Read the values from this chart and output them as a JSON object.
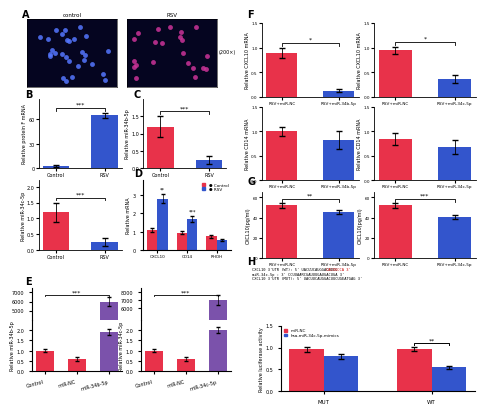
{
  "panel_B": {
    "categories": [
      "Control",
      "RSV"
    ],
    "values": [
      3,
      65
    ],
    "errors": [
      1,
      3
    ],
    "colors": [
      "#3355CC",
      "#3355CC"
    ],
    "ylabel": "Relative protein F mRNA",
    "sig": "***",
    "yticks": [
      0,
      30,
      60
    ],
    "ylim": [
      0,
      85
    ]
  },
  "panel_C_top": {
    "categories": [
      "Control",
      "RSV"
    ],
    "values": [
      1.2,
      0.25
    ],
    "errors": [
      0.3,
      0.12
    ],
    "colors": [
      "#E8324A",
      "#3355CC"
    ],
    "ylabel": "Relative miR-34b-5p",
    "sig": "***",
    "yticks": [
      0.0,
      0.5,
      1.0,
      1.5
    ],
    "ylim": [
      0,
      2.0
    ]
  },
  "panel_C_bottom": {
    "categories": [
      "Control",
      "RSV"
    ],
    "values": [
      1.2,
      0.25
    ],
    "errors": [
      0.3,
      0.12
    ],
    "colors": [
      "#E8324A",
      "#3355CC"
    ],
    "ylabel": "Relative miR-34c-5p",
    "sig": "***",
    "yticks": [
      0.0,
      0.5,
      1.0,
      1.5,
      2.0
    ],
    "ylim": [
      0,
      2.2
    ]
  },
  "panel_D": {
    "categories": [
      "CXCL10",
      "CD14",
      "RHOH"
    ],
    "values_control": [
      1.1,
      0.95,
      0.75
    ],
    "values_RSV": [
      2.8,
      1.7,
      0.55
    ],
    "errors_control": [
      0.12,
      0.1,
      0.08
    ],
    "errors_RSV": [
      0.25,
      0.18,
      0.08
    ],
    "ylabel": "Relative mRNA",
    "sigs": [
      "**",
      "***",
      null
    ],
    "ylim": [
      0,
      3.8
    ],
    "yticks": [
      0,
      1,
      2,
      3
    ]
  },
  "panel_E_left": {
    "categories": [
      "Control",
      "miR-NC",
      "miR-34b-5p"
    ],
    "values_low": [
      1.0,
      0.6,
      1.9
    ],
    "values_high": [
      0,
      0,
      6000
    ],
    "errors_low": [
      0.08,
      0.08,
      0.15
    ],
    "errors_high": [
      0,
      0,
      500
    ],
    "ylabel_low": "Relative miR-34b-5p",
    "sig": "***",
    "ylim_low": [
      0,
      2.5
    ],
    "ylim_high": [
      4000,
      7500
    ],
    "yticks_low": [
      0.0,
      0.5,
      1.0,
      1.5,
      2.0
    ],
    "yticks_high": [
      5000,
      6000,
      7000
    ],
    "colors": [
      "#E8324A",
      "#E8324A",
      "#7B52AB"
    ]
  },
  "panel_E_right": {
    "categories": [
      "Control",
      "miR-NC",
      "miR-34c-5p"
    ],
    "values_low": [
      1.0,
      0.6,
      2.0
    ],
    "values_high": [
      0,
      0,
      7000
    ],
    "errors_low": [
      0.08,
      0.08,
      0.15
    ],
    "errors_high": [
      0,
      0,
      600
    ],
    "ylabel_low": "Relative miR-34c-5p",
    "sig": "***",
    "ylim_low": [
      0,
      2.5
    ],
    "ylim_high": [
      4500,
      8500
    ],
    "yticks_low": [
      0.0,
      0.5,
      1.0,
      1.5,
      2.0
    ],
    "yticks_high": [
      6000,
      7000,
      8000
    ],
    "colors": [
      "#E8324A",
      "#E8324A",
      "#7B52AB"
    ]
  },
  "panel_F_CXCL10_34b": {
    "categories": [
      "RSV+miR-NC",
      "RSV+miR-34b-5p"
    ],
    "values": [
      0.9,
      0.12
    ],
    "errors": [
      0.1,
      0.03
    ],
    "colors": [
      "#E8324A",
      "#3355CC"
    ],
    "ylabel": "Relative CXCL10 mRNA",
    "sig": "*",
    "yticks": [
      0.0,
      0.5,
      1.0,
      1.5
    ],
    "ylim": [
      0,
      1.5
    ]
  },
  "panel_F_CXCL10_34c": {
    "categories": [
      "RSV+miR-NC",
      "RSV+miR-34c-5p"
    ],
    "values": [
      0.95,
      0.37
    ],
    "errors": [
      0.07,
      0.08
    ],
    "colors": [
      "#E8324A",
      "#3355CC"
    ],
    "ylabel": "Relative CXCL10 mRNA",
    "sig": "*",
    "yticks": [
      0.0,
      0.5,
      1.0,
      1.5
    ],
    "ylim": [
      0,
      1.5
    ]
  },
  "panel_F_CD14_34b": {
    "categories": [
      "RSV+miR-NC",
      "RSV+miR-34b-5p"
    ],
    "values": [
      1.0,
      0.82
    ],
    "errors": [
      0.09,
      0.18
    ],
    "colors": [
      "#E8324A",
      "#3355CC"
    ],
    "ylabel": "Relative CD14 mRNA",
    "sig": null,
    "yticks": [
      0.0,
      0.5,
      1.0,
      1.5
    ],
    "ylim": [
      0,
      1.5
    ]
  },
  "panel_F_CD14_34c": {
    "categories": [
      "RSV+miR-NC",
      "RSV+miR-34c-5p"
    ],
    "values": [
      0.85,
      0.68
    ],
    "errors": [
      0.12,
      0.15
    ],
    "colors": [
      "#E8324A",
      "#3355CC"
    ],
    "ylabel": "Relative CD14 mRNA",
    "sig": null,
    "yticks": [
      0.0,
      0.5,
      1.0,
      1.5
    ],
    "ylim": [
      0,
      1.5
    ]
  },
  "panel_G_left": {
    "categories": [
      "RSV+miR-NC",
      "RSV+miR-34b-5p"
    ],
    "values": [
      52,
      46
    ],
    "errors": [
      2,
      2
    ],
    "colors": [
      "#E8324A",
      "#3355CC"
    ],
    "ylabel": "CXCL10(pg/ml)",
    "sig": "**",
    "yticks": [
      0,
      20,
      40,
      60
    ],
    "ylim": [
      0,
      65
    ]
  },
  "panel_G_right": {
    "categories": [
      "RSV+miR-NC",
      "RSV+miR-34c-5p"
    ],
    "values": [
      52,
      41
    ],
    "errors": [
      2,
      2
    ],
    "colors": [
      "#E8324A",
      "#3355CC"
    ],
    "ylabel": "CXCL10(pg/ml)",
    "sig": "***",
    "yticks": [
      0,
      20,
      40,
      60
    ],
    "ylim": [
      0,
      65
    ]
  },
  "panel_H": {
    "categories": [
      "MUT",
      "WT"
    ],
    "values_red": [
      0.96,
      0.97
    ],
    "values_blue": [
      0.8,
      0.55
    ],
    "errors_red": [
      0.06,
      0.05
    ],
    "errors_blue": [
      0.05,
      0.04
    ],
    "ylabel": "Relative luciferase activity",
    "sig": "**",
    "yticks": [
      0.0,
      0.5,
      1.0,
      1.5
    ],
    "ylim": [
      0,
      1.5
    ],
    "legend": [
      "miR-NC",
      "hsa-miR-34c-5p-mimics"
    ]
  },
  "bg_color": "#ffffff"
}
